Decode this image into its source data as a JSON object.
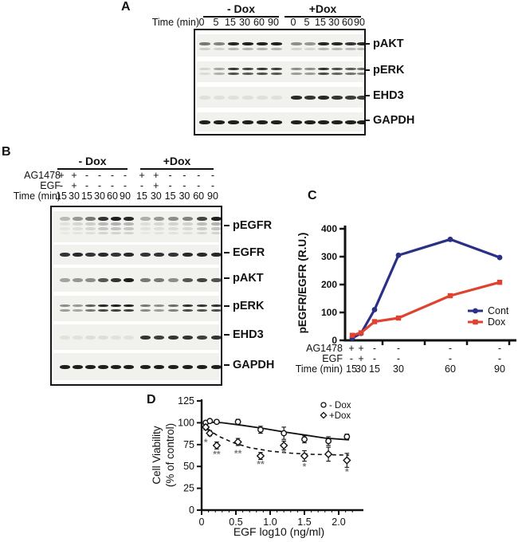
{
  "figure": {
    "background": "#ffffff"
  },
  "colors": {
    "cont_line": "#2b3087",
    "dox_line": "#df4330",
    "significance": "#7a7a7a",
    "text": "#111111"
  },
  "panels": {
    "A": {
      "letter": "A",
      "group_headers": [
        "- Dox",
        "+Dox"
      ],
      "rows": [
        {
          "label": "Time (min)",
          "values": [
            "0",
            "5",
            "15",
            "30",
            "60",
            "90",
            "0",
            "5",
            "15",
            "30",
            "60",
            "90"
          ]
        }
      ],
      "blots": [
        {
          "name": "pAKT",
          "style": "double-faint",
          "intensities": [
            0.55,
            0.5,
            0.92,
            0.95,
            0.95,
            0.95,
            0.45,
            0.42,
            0.92,
            0.92,
            0.85,
            0.9
          ]
        },
        {
          "name": "pERK",
          "style": "double",
          "intensities": [
            0.12,
            0.35,
            0.85,
            0.8,
            0.85,
            0.82,
            0.45,
            0.45,
            0.88,
            0.75,
            0.68,
            0.62
          ]
        },
        {
          "name": "EHD3",
          "style": "single",
          "intensities": [
            0.08,
            0.08,
            0.08,
            0.08,
            0.08,
            0.08,
            0.9,
            0.85,
            0.9,
            0.85,
            0.82,
            0.8
          ]
        },
        {
          "name": "GAPDH",
          "style": "single",
          "intensities": [
            0.95,
            0.95,
            0.95,
            0.95,
            0.95,
            0.95,
            0.95,
            0.95,
            0.95,
            0.95,
            0.95,
            0.95
          ]
        }
      ]
    },
    "B": {
      "letter": "B",
      "group_headers": [
        "- Dox",
        "+Dox"
      ],
      "rows": [
        {
          "label": "AG1478",
          "values": [
            "+",
            "+",
            "-",
            "-",
            "-",
            "-",
            "+",
            "+",
            "-",
            "-",
            "-",
            "-"
          ]
        },
        {
          "label": "EGF",
          "values": [
            "-",
            "+",
            "-",
            "-",
            "-",
            "-",
            "-",
            "+",
            "-",
            "-",
            "-",
            "-"
          ]
        },
        {
          "label": "Time (min)",
          "values": [
            "15",
            "30",
            "15",
            "30",
            "60",
            "90",
            "15",
            "30",
            "15",
            "30",
            "60",
            "90"
          ]
        }
      ],
      "blots": [
        {
          "name": "pEGFR",
          "style": "smear",
          "intensities": [
            0.25,
            0.4,
            0.55,
            0.85,
            0.95,
            0.9,
            0.3,
            0.4,
            0.45,
            0.5,
            0.78,
            0.95
          ]
        },
        {
          "name": "EGFR",
          "style": "single",
          "intensities": [
            0.85,
            0.9,
            0.85,
            0.9,
            0.85,
            0.9,
            0.85,
            0.85,
            0.85,
            0.9,
            0.9,
            0.9
          ]
        },
        {
          "name": "pAKT",
          "style": "single",
          "intensities": [
            0.35,
            0.4,
            0.45,
            0.7,
            0.85,
            0.95,
            0.55,
            0.55,
            0.45,
            0.7,
            0.78,
            0.72
          ]
        },
        {
          "name": "pERK",
          "style": "double",
          "intensities": [
            0.45,
            0.4,
            0.65,
            0.9,
            0.95,
            0.95,
            0.55,
            0.45,
            0.6,
            0.88,
            0.85,
            0.88
          ]
        },
        {
          "name": "EHD3",
          "style": "single",
          "intensities": [
            0.07,
            0.07,
            0.09,
            0.09,
            0.07,
            0.07,
            0.85,
            0.8,
            0.85,
            0.85,
            0.8,
            0.85
          ]
        },
        {
          "name": "GAPDH",
          "style": "single",
          "intensities": [
            0.95,
            0.95,
            0.95,
            0.95,
            0.95,
            0.95,
            0.95,
            0.95,
            0.95,
            0.95,
            0.95,
            0.95
          ]
        }
      ]
    },
    "C": {
      "letter": "C"
    },
    "D": {
      "letter": "D"
    }
  },
  "chart_data": [
    {
      "panel": "C",
      "type": "line",
      "title": "",
      "ylabel": "pEGFR/EGFR (R.U.)",
      "ylim": [
        0,
        400
      ],
      "yticks": [
        0,
        100,
        200,
        300,
        400
      ],
      "grid": false,
      "legend_position": "inside-right-bottom",
      "x_axis_rows": [
        {
          "label": "AG1478",
          "values": [
            "+",
            "+",
            "-",
            "-",
            "-",
            "-"
          ]
        },
        {
          "label": "EGF",
          "values": [
            "-",
            "+",
            "-",
            "-",
            "-",
            "-"
          ]
        },
        {
          "label": "Time (min)",
          "values": [
            "15",
            "30",
            "15",
            "30",
            "60",
            "90"
          ]
        }
      ],
      "series": [
        {
          "name": "Cont",
          "color": "#2b3087",
          "marker": "circle",
          "values": [
            8,
            25,
            110,
            305,
            362,
            297
          ]
        },
        {
          "name": "Dox",
          "color": "#df4330",
          "marker": "square",
          "values": [
            18,
            27,
            67,
            80,
            160,
            208
          ]
        }
      ]
    },
    {
      "panel": "D",
      "type": "scatter",
      "title": "",
      "xlabel": "EGF log10 (ng/ml)",
      "ylabel_line1": "Cell Viability",
      "ylabel_line2": "(% of control)",
      "xlim": [
        0,
        2.3
      ],
      "xticks": [
        0,
        0.5,
        1.0,
        1.5,
        2.0
      ],
      "xtick_labels": [
        "0",
        "0.5",
        "1.0",
        "1.5",
        "2.0"
      ],
      "ylim": [
        0,
        125
      ],
      "yticks": [
        0,
        25,
        50,
        75,
        100,
        125
      ],
      "grid": false,
      "legend_position": "inside-top-right",
      "series": [
        {
          "name": "- Dox",
          "marker": "circle",
          "fit": "solid",
          "x": [
            0.06,
            0.12,
            0.22,
            0.53,
            0.86,
            1.2,
            1.5,
            1.85,
            2.12
          ],
          "y": [
            100,
            102,
            101,
            101,
            92,
            88,
            81,
            79,
            84
          ],
          "err": [
            2,
            2,
            2,
            3,
            4,
            7,
            4,
            5,
            3
          ]
        },
        {
          "name": "+Dox",
          "marker": "diamond",
          "fit": "dashed",
          "x": [
            0.06,
            0.12,
            0.22,
            0.53,
            0.86,
            1.2,
            1.5,
            1.85,
            2.12
          ],
          "y": [
            95,
            88,
            74,
            78,
            62,
            74,
            62,
            64,
            57
          ],
          "err": [
            3,
            3,
            4,
            4,
            4,
            5,
            6,
            8,
            8
          ]
        }
      ],
      "fit_curves": [
        {
          "style": "solid",
          "points": [
            [
              0.02,
              101
            ],
            [
              0.3,
              100
            ],
            [
              0.6,
              97
            ],
            [
              0.9,
              93.5
            ],
            [
              1.2,
              89.5
            ],
            [
              1.5,
              86
            ],
            [
              1.8,
              82.5
            ],
            [
              2.15,
              80.5
            ]
          ]
        },
        {
          "style": "dashed",
          "points": [
            [
              0.02,
              99
            ],
            [
              0.12,
              91
            ],
            [
              0.25,
              84.5
            ],
            [
              0.45,
              77.5
            ],
            [
              0.7,
              71.5
            ],
            [
              1.0,
              67.5
            ],
            [
              1.3,
              65.2
            ],
            [
              1.6,
              64
            ],
            [
              1.9,
              63.3
            ],
            [
              2.15,
              63
            ]
          ]
        }
      ],
      "significance": [
        {
          "x": 0.06,
          "y": 74,
          "text": "*"
        },
        {
          "x": 0.22,
          "y": 60,
          "text": "**"
        },
        {
          "x": 0.53,
          "y": 61,
          "text": "**"
        },
        {
          "x": 0.86,
          "y": 49,
          "text": "**"
        },
        {
          "x": 1.2,
          "y": 61,
          "text": "*"
        },
        {
          "x": 1.5,
          "y": 46,
          "text": "*"
        },
        {
          "x": 2.12,
          "y": 40,
          "text": "*"
        }
      ]
    }
  ]
}
